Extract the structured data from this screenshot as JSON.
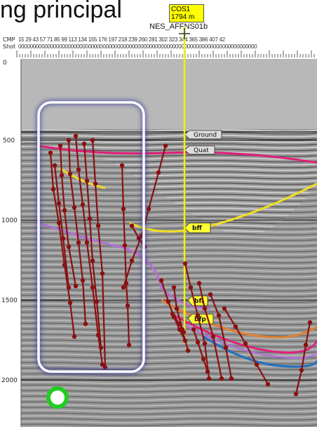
{
  "title": "ng principal",
  "well": {
    "name": "COS1",
    "offset": "1794 m"
  },
  "line_name": "NES_AFFNS01b",
  "header": {
    "cmp_label": "CMP",
    "shot_label": "Shot",
    "cmp_values": "15 29 43 57 71 85 99 113 134 155 176 197 218 239 260 281 302 323 344 365 386 407 42",
    "shot_values": "0000000000000000000000000000000000000000000000000000000000000000000000000000000000"
  },
  "depth_ticks": [
    "0",
    "500",
    "1000",
    "1500",
    "2000"
  ],
  "horizons": [
    {
      "label": "Ground",
      "color": "#dddddd"
    },
    {
      "label": "Quat",
      "color": "#dddddd"
    },
    {
      "label": "bff",
      "color": "#ffff33"
    },
    {
      "label": "bfl",
      "color": "#ffff33"
    },
    {
      "label": "bfp",
      "color": "#ffff33"
    }
  ],
  "colors": {
    "fault": "#8b1010",
    "well_line": "#f2f200",
    "highlight_box": "#ffffff",
    "marker": "#22cc22",
    "magenta": "#e0207a",
    "yellow": "#f0e020",
    "violet": "#b070d8",
    "orange": "#e08030",
    "blue": "#2070c0"
  }
}
